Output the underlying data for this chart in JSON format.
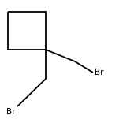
{
  "background_color": "#ffffff",
  "line_color": "#000000",
  "line_width": 1.3,
  "font_size": 7.5,
  "font_family": "DejaVu Sans",
  "xlim": [
    0,
    156
  ],
  "ylim": [
    0,
    151
  ],
  "cyclobutane_corners": [
    [
      10,
      15
    ],
    [
      58,
      15
    ],
    [
      58,
      63
    ],
    [
      10,
      63
    ]
  ],
  "junction": [
    58,
    63
  ],
  "chain1_points": [
    [
      58,
      63
    ],
    [
      58,
      100
    ],
    [
      22,
      135
    ]
  ],
  "br1_label": "Br",
  "br1_x": 8,
  "br1_y": 142,
  "chain2_points": [
    [
      58,
      63
    ],
    [
      95,
      78
    ],
    [
      118,
      92
    ]
  ],
  "br2_label": "Br",
  "br2_x": 120,
  "br2_y": 92
}
